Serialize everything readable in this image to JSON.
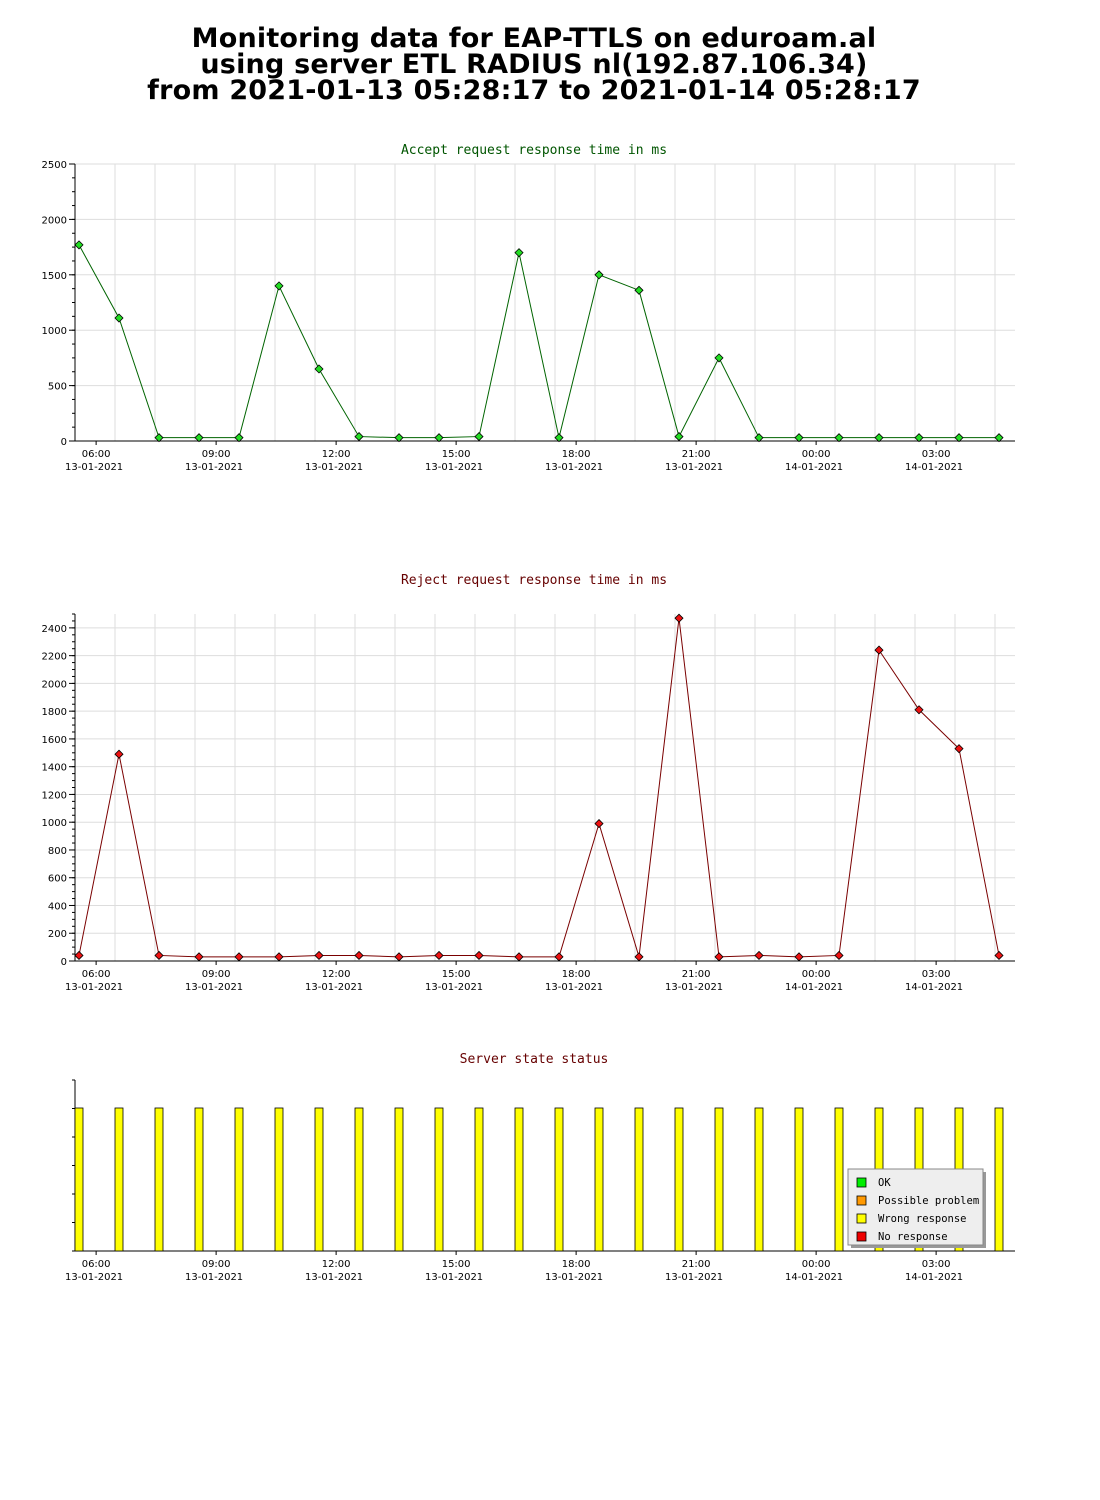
{
  "header": {
    "line1": "Monitoring data for EAP-TTLS on eduroam.al",
    "line2": "using server ETL RADIUS nl(192.87.106.34)",
    "line3": "from 2021-01-13 05:28:17 to 2021-01-14 05:28:17"
  },
  "colors": {
    "accept_line": "#006400",
    "accept_marker": "#22dd22",
    "reject_line": "#7a0000",
    "reject_marker": "#ee1111",
    "bar": "#ffff00",
    "grid": "#dddddd",
    "accept_title": "#005500",
    "reject_title": "#660000",
    "status_title": "#660000"
  },
  "chart_data": [
    {
      "type": "line",
      "title": "Accept request response time in ms",
      "x_unit": "hours since 2021-01-13 05:28:17",
      "x": [
        0.1,
        1.1,
        2.1,
        3.1,
        4.1,
        5.1,
        6.1,
        7.1,
        8.1,
        9.1,
        10.1,
        11.1,
        12.1,
        13.1,
        14.1,
        15.1,
        16.1,
        17.1,
        18.1,
        19.1,
        20.1,
        21.1,
        22.1,
        23.1
      ],
      "values": [
        1770,
        1110,
        30,
        30,
        30,
        1400,
        650,
        40,
        30,
        30,
        40,
        1700,
        30,
        1500,
        1360,
        40,
        750,
        30,
        30,
        30,
        30,
        30,
        30,
        30
      ],
      "ylim": [
        0,
        2500
      ],
      "yticks": [
        0,
        500,
        1000,
        1500,
        2000,
        2500
      ],
      "grid": true
    },
    {
      "type": "line",
      "title": "Reject request response time in ms",
      "x_unit": "hours since 2021-01-13 05:28:17",
      "x": [
        0.1,
        1.1,
        2.1,
        3.1,
        4.1,
        5.1,
        6.1,
        7.1,
        8.1,
        9.1,
        10.1,
        11.1,
        12.1,
        13.1,
        14.1,
        15.1,
        16.1,
        17.1,
        18.1,
        19.1,
        20.1,
        21.1,
        22.1,
        23.1
      ],
      "values": [
        40,
        1490,
        40,
        30,
        30,
        30,
        40,
        40,
        30,
        40,
        40,
        30,
        30,
        990,
        30,
        2470,
        30,
        40,
        30,
        40,
        2240,
        1810,
        1530,
        40
      ],
      "ylim": [
        0,
        2500
      ],
      "yticks": [
        0,
        200,
        400,
        600,
        800,
        1000,
        1200,
        1400,
        1600,
        1800,
        2000,
        2200,
        2400
      ],
      "grid": true
    },
    {
      "type": "bar",
      "title": "Server state status",
      "x_unit": "hours since 2021-01-13 05:28:17",
      "x": [
        0.1,
        1.1,
        2.1,
        3.1,
        4.1,
        5.1,
        6.1,
        7.1,
        8.1,
        9.1,
        10.1,
        11.1,
        12.1,
        13.1,
        14.1,
        15.1,
        16.1,
        17.1,
        18.1,
        19.1,
        20.1,
        21.1,
        22.1,
        23.1
      ],
      "status": [
        "Wrong response",
        "Wrong response",
        "Wrong response",
        "Wrong response",
        "Wrong response",
        "Wrong response",
        "Wrong response",
        "Wrong response",
        "Wrong response",
        "Wrong response",
        "Wrong response",
        "Wrong response",
        "Wrong response",
        "Wrong response",
        "Wrong response",
        "Wrong response",
        "Wrong response",
        "Wrong response",
        "Wrong response",
        "Wrong response",
        "Wrong response",
        "Wrong response",
        "Wrong response",
        "Wrong response"
      ],
      "legend_position": "bottom-right",
      "legend": [
        {
          "label": "OK",
          "color": "#00ee00"
        },
        {
          "label": "Possible problem",
          "color": "#ff9900"
        },
        {
          "label": "Wrong response",
          "color": "#ffff00"
        },
        {
          "label": "No response",
          "color": "#ee0000"
        }
      ]
    }
  ],
  "x_ticks": [
    {
      "time": "06:00",
      "date": "13-01-2021",
      "x": 0.528
    },
    {
      "time": "09:00",
      "date": "13-01-2021",
      "x": 3.528
    },
    {
      "time": "12:00",
      "date": "13-01-2021",
      "x": 6.528
    },
    {
      "time": "15:00",
      "date": "13-01-2021",
      "x": 9.528
    },
    {
      "time": "18:00",
      "date": "13-01-2021",
      "x": 12.528
    },
    {
      "time": "21:00",
      "date": "13-01-2021",
      "x": 15.528
    },
    {
      "time": "00:00",
      "date": "14-01-2021",
      "x": 18.528
    },
    {
      "time": "03:00",
      "date": "14-01-2021",
      "x": 21.528
    }
  ]
}
